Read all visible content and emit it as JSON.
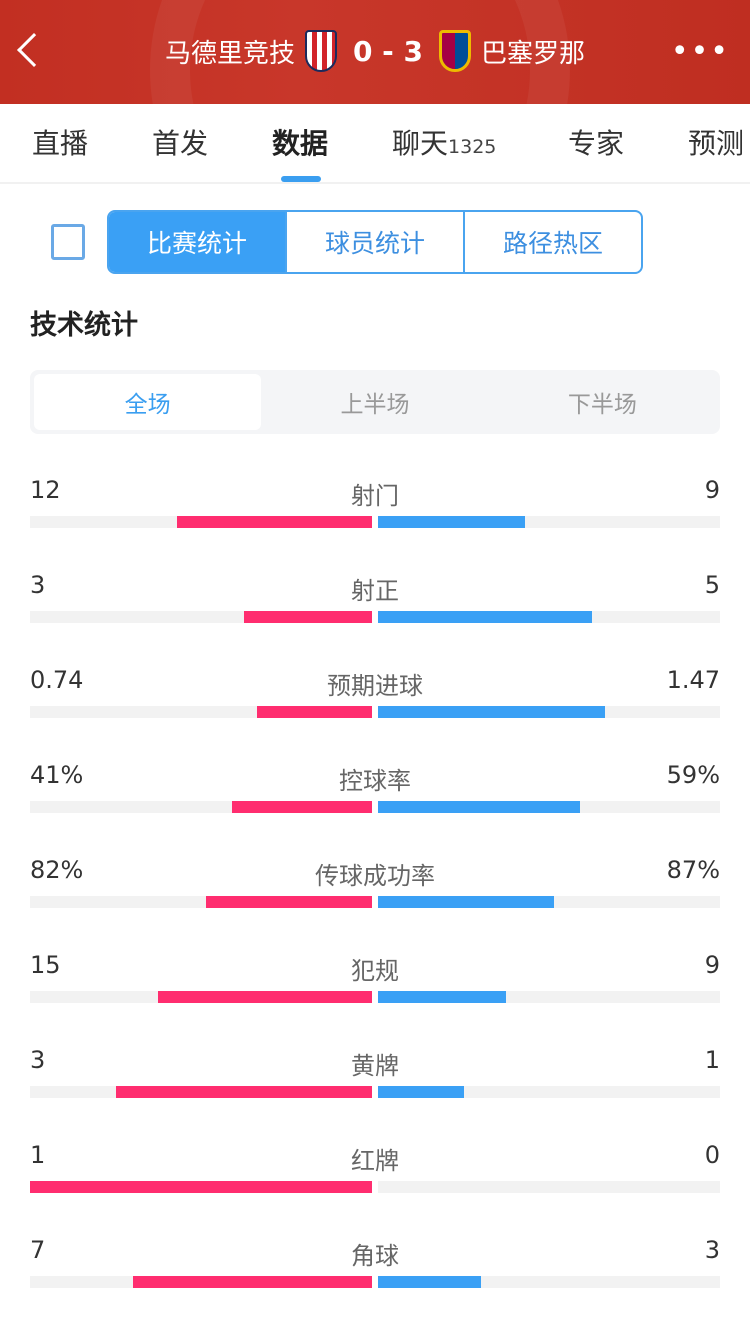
{
  "header": {
    "home_team": "马德里竞技",
    "score": "0 - 3",
    "away_team": "巴塞罗那"
  },
  "tabs": [
    {
      "label": "直播"
    },
    {
      "label": "首发"
    },
    {
      "label": "数据"
    },
    {
      "label": "聊天",
      "count": "1325"
    },
    {
      "label": "专家"
    },
    {
      "label": "预测"
    }
  ],
  "active_tab": "数据",
  "segments": [
    "比赛统计",
    "球员统计",
    "路径热区"
  ],
  "section_title": "技术统计",
  "periods": [
    "全场",
    "上半场",
    "下半场"
  ],
  "colors": {
    "home": "#ff2d6f",
    "away": "#3aa0f5",
    "header": "#c22f22"
  },
  "stats": [
    {
      "name": "射门",
      "home": "12",
      "away": "9",
      "home_frac": 0.571,
      "away_frac": 0.429
    },
    {
      "name": "射正",
      "home": "3",
      "away": "5",
      "home_frac": 0.375,
      "away_frac": 0.625
    },
    {
      "name": "预期进球",
      "home": "0.74",
      "away": "1.47",
      "home_frac": 0.335,
      "away_frac": 0.665
    },
    {
      "name": "控球率",
      "home": "41%",
      "away": "59%",
      "home_frac": 0.41,
      "away_frac": 0.59
    },
    {
      "name": "传球成功率",
      "home": "82%",
      "away": "87%",
      "home_frac": 0.485,
      "away_frac": 0.515
    },
    {
      "name": "犯规",
      "home": "15",
      "away": "9",
      "home_frac": 0.625,
      "away_frac": 0.375
    },
    {
      "name": "黄牌",
      "home": "3",
      "away": "1",
      "home_frac": 0.75,
      "away_frac": 0.25
    },
    {
      "name": "红牌",
      "home": "1",
      "away": "0",
      "home_frac": 1,
      "away_frac": 0
    },
    {
      "name": "角球",
      "home": "7",
      "away": "3",
      "home_frac": 0.7,
      "away_frac": 0.3
    }
  ]
}
